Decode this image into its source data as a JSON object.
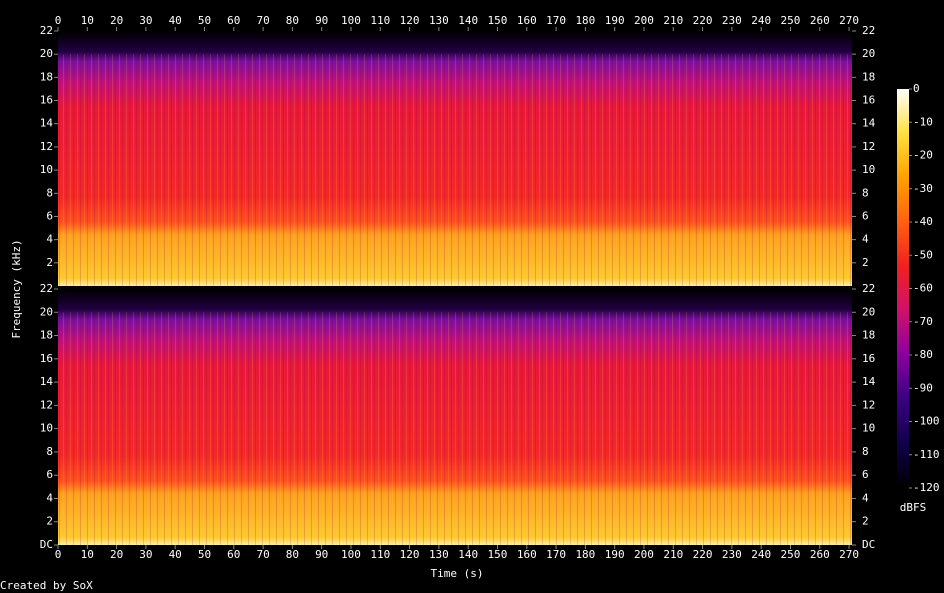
{
  "chart_data": {
    "type": "spectrogram",
    "xlabel": "Time (s)",
    "ylabel": "Frequency (kHz)",
    "footer": "Created by SoX",
    "xlim": [
      0,
      271
    ],
    "xticks": [
      0,
      10,
      20,
      30,
      40,
      50,
      60,
      70,
      80,
      90,
      100,
      110,
      120,
      130,
      140,
      150,
      160,
      170,
      180,
      190,
      200,
      210,
      220,
      230,
      240,
      250,
      260,
      270
    ],
    "channels": [
      {
        "ylim": [
          0,
          22
        ],
        "yticks": [
          2,
          4,
          6,
          8,
          10,
          12,
          14,
          16,
          18,
          20,
          22
        ]
      },
      {
        "ylim": [
          0,
          22
        ],
        "yticks": [
          {
            "value": 0,
            "label": "DC"
          },
          2,
          4,
          6,
          8,
          10,
          12,
          14,
          16,
          18,
          20,
          22
        ]
      }
    ],
    "colorbar": {
      "label": "dBFS",
      "clim": [
        -120,
        0
      ],
      "ticks": [
        0,
        -10,
        -20,
        -30,
        -40,
        -50,
        -60,
        -70,
        -80,
        -90,
        -100,
        -110,
        -120
      ],
      "colormap": [
        "#000000",
        "#10004a",
        "#3a0080",
        "#8a00a0",
        "#d0106a",
        "#f02020",
        "#ff6010",
        "#ffa000",
        "#ffe040",
        "#ffffff"
      ]
    }
  }
}
